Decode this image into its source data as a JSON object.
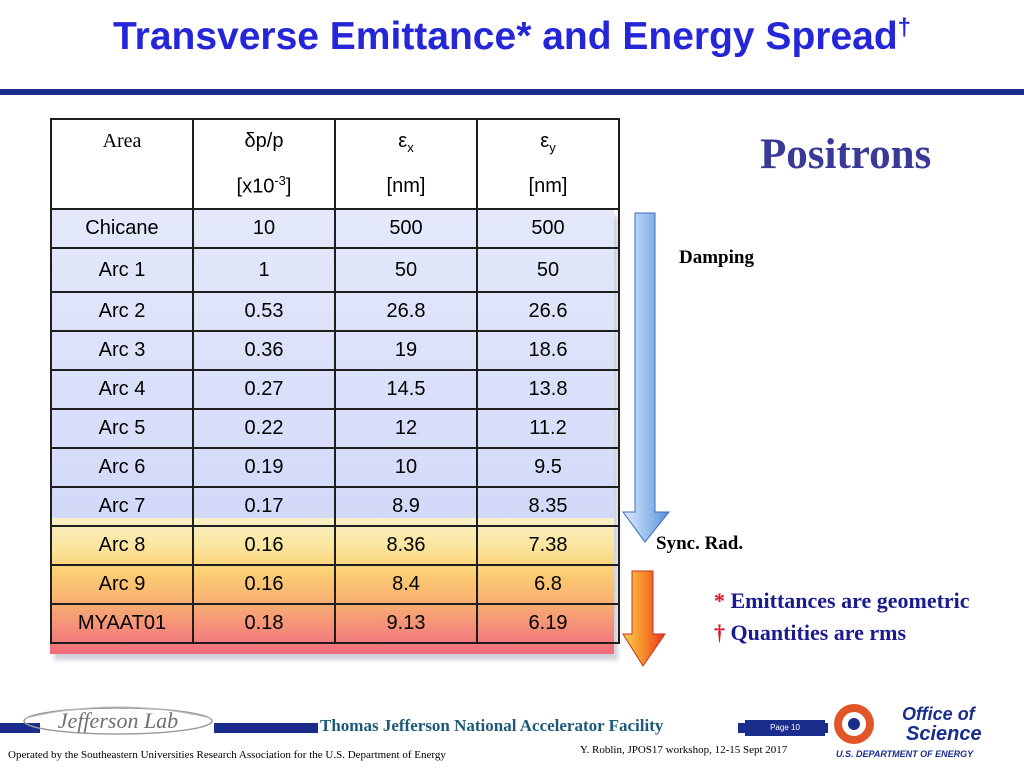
{
  "title": {
    "text": "Transverse Emittance",
    "star": "*",
    "rest": " and Energy Spread",
    "dagger": "†"
  },
  "table": {
    "headers": [
      {
        "line1": "Area",
        "line2": ""
      },
      {
        "line1": "δp/p",
        "line2": "[x10",
        "line2_sup": "-3",
        "line2_end": "]"
      },
      {
        "line1": "ε",
        "line1_sub": "x",
        "line2": "[nm]"
      },
      {
        "line1": "ε",
        "line1_sub": "y",
        "line2": "[nm]"
      }
    ],
    "rows": [
      [
        "Chicane",
        "10",
        "500",
        "500"
      ],
      [
        "Arc 1",
        "1",
        "50",
        "50"
      ],
      [
        "Arc 2",
        "0.53",
        "26.8",
        "26.6"
      ],
      [
        "Arc 3",
        "0.36",
        "19",
        "18.6"
      ],
      [
        "Arc 4",
        "0.27",
        "14.5",
        "13.8"
      ],
      [
        "Arc 5",
        "0.22",
        "12",
        "11.2"
      ],
      [
        "Arc 6",
        "0.19",
        "10",
        "9.5"
      ],
      [
        "Arc 7",
        "0.17",
        "8.9",
        "8.35"
      ],
      [
        "Arc 8",
        "0.16",
        "8.36",
        "7.38"
      ],
      [
        "Arc 9",
        "0.16",
        "8.4",
        "6.8"
      ],
      [
        "MYAAT01",
        "0.18",
        "9.13",
        "6.19"
      ]
    ]
  },
  "side": {
    "positrons": "Positrons",
    "damping": "Damping",
    "sync": "Sync. Rad.",
    "note1_sym": "*",
    "note1_text": " Emittances are geometric",
    "note2_sym": "†",
    "note2_text": " Quantities are rms"
  },
  "footer": {
    "lab_logo": "Jefferson Lab",
    "facility": "Thomas Jefferson National Accelerator Facility",
    "page": "Page 10",
    "office_line1": "Office of",
    "office_line2": "Science",
    "doe": "U.S. DEPARTMENT OF ENERGY",
    "operated": "Operated by the Southeastern Universities Research Association for the U.S. Department of  Energy",
    "author": "Y. Roblin, JPOS17 workshop, 12-15 Sept 2017"
  },
  "colors": {
    "title": "#2626d9",
    "rule": "#1a2c8c",
    "positrons": "#3a3a96",
    "notes": "#1b1b8f",
    "note_symbols": "#e0102a"
  }
}
